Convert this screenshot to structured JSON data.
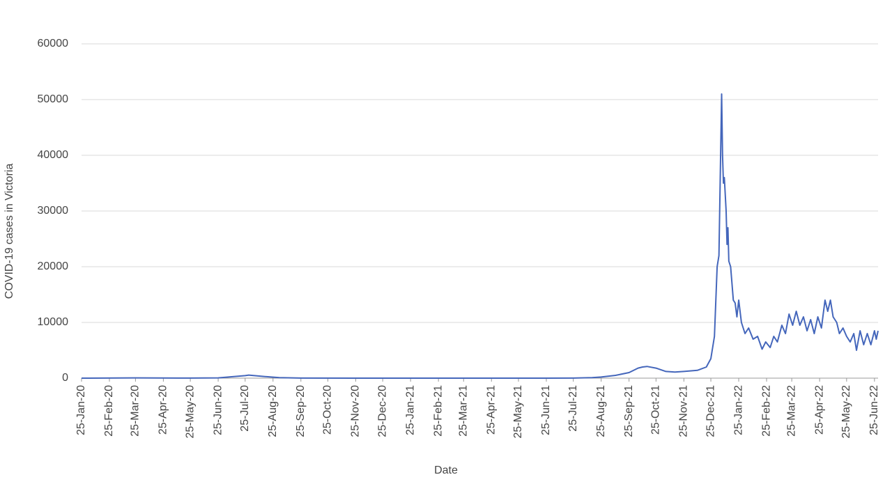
{
  "chart_data": {
    "type": "line",
    "x_label": "Date",
    "y_label": "COVID-19 cases in Victoria",
    "color": "#4466bb",
    "grid": true,
    "x": [
      "2020-01-25",
      "2020-03-25",
      "2020-05-25",
      "2020-06-25",
      "2020-07-10",
      "2020-07-25",
      "2020-07-29",
      "2020-08-15",
      "2020-09-01",
      "2020-09-25",
      "2020-11-25",
      "2021-01-25",
      "2021-06-25",
      "2021-07-25",
      "2021-08-15",
      "2021-08-25",
      "2021-09-10",
      "2021-09-25",
      "2021-10-05",
      "2021-10-10",
      "2021-10-15",
      "2021-10-25",
      "2021-11-05",
      "2021-11-15",
      "2021-11-25",
      "2021-12-10",
      "2021-12-20",
      "2021-12-25",
      "2021-12-29",
      "2022-01-01",
      "2022-01-03",
      "2022-01-06",
      "2022-01-07",
      "2022-01-08",
      "2022-01-09",
      "2022-01-11",
      "2022-01-12",
      "2022-01-13",
      "2022-01-14",
      "2022-01-16",
      "2022-01-19",
      "2022-01-21",
      "2022-01-23",
      "2022-01-25",
      "2022-01-28",
      "2022-02-01",
      "2022-02-05",
      "2022-02-10",
      "2022-02-15",
      "2022-02-20",
      "2022-02-24",
      "2022-03-01",
      "2022-03-05",
      "2022-03-09",
      "2022-03-14",
      "2022-03-18",
      "2022-03-22",
      "2022-03-26",
      "2022-03-30",
      "2022-04-03",
      "2022-04-07",
      "2022-04-11",
      "2022-04-15",
      "2022-04-19",
      "2022-04-23",
      "2022-04-27",
      "2022-05-01",
      "2022-05-04",
      "2022-05-07",
      "2022-05-10",
      "2022-05-14",
      "2022-05-17",
      "2022-05-21",
      "2022-05-25",
      "2022-05-29",
      "2022-06-02",
      "2022-06-05",
      "2022-06-09",
      "2022-06-13",
      "2022-06-17",
      "2022-06-21",
      "2022-06-25",
      "2022-06-27",
      "2022-06-29"
    ],
    "values": [
      0,
      50,
      10,
      50,
      250,
      450,
      550,
      300,
      100,
      20,
      0,
      0,
      0,
      20,
      100,
      200,
      500,
      1000,
      1800,
      2000,
      2100,
      1800,
      1200,
      1100,
      1200,
      1400,
      2000,
      3500,
      7500,
      20000,
      22000,
      51000,
      40000,
      35000,
      36000,
      30000,
      24000,
      27000,
      21000,
      20000,
      14000,
      13500,
      11000,
      14000,
      10000,
      8000,
      9000,
      7000,
      7500,
      5200,
      6500,
      5500,
      7500,
      6500,
      9500,
      8000,
      11500,
      9500,
      12000,
      9500,
      11000,
      8500,
      10500,
      8000,
      11000,
      9000,
      14000,
      12000,
      14000,
      11000,
      10000,
      8000,
      9000,
      7500,
      6500,
      8000,
      5000,
      8500,
      6000,
      8000,
      6000,
      8500,
      7000,
      8500
    ],
    "xlim": [
      "2020-01-25",
      "2022-06-29"
    ],
    "xticks": [
      {
        "value": "2020-01-25",
        "label": "25-Jan-20"
      },
      {
        "value": "2020-02-25",
        "label": "25-Feb-20"
      },
      {
        "value": "2020-03-25",
        "label": "25-Mar-20"
      },
      {
        "value": "2020-04-25",
        "label": "25-Apr-20"
      },
      {
        "value": "2020-05-25",
        "label": "25-May-20"
      },
      {
        "value": "2020-06-25",
        "label": "25-Jun-20"
      },
      {
        "value": "2020-07-25",
        "label": "25-Jul-20"
      },
      {
        "value": "2020-08-25",
        "label": "25-Aug-20"
      },
      {
        "value": "2020-09-25",
        "label": "25-Sep-20"
      },
      {
        "value": "2020-10-25",
        "label": "25-Oct-20"
      },
      {
        "value": "2020-11-25",
        "label": "25-Nov-20"
      },
      {
        "value": "2020-12-25",
        "label": "25-Dec-20"
      },
      {
        "value": "2021-01-25",
        "label": "25-Jan-21"
      },
      {
        "value": "2021-02-25",
        "label": "25-Feb-21"
      },
      {
        "value": "2021-03-25",
        "label": "25-Mar-21"
      },
      {
        "value": "2021-04-25",
        "label": "25-Apr-21"
      },
      {
        "value": "2021-05-25",
        "label": "25-May-21"
      },
      {
        "value": "2021-06-25",
        "label": "25-Jun-21"
      },
      {
        "value": "2021-07-25",
        "label": "25-Jul-21"
      },
      {
        "value": "2021-08-25",
        "label": "25-Aug-21"
      },
      {
        "value": "2021-09-25",
        "label": "25-Sep-21"
      },
      {
        "value": "2021-10-25",
        "label": "25-Oct-21"
      },
      {
        "value": "2021-11-25",
        "label": "25-Nov-21"
      },
      {
        "value": "2021-12-25",
        "label": "25-Dec-21"
      },
      {
        "value": "2022-01-25",
        "label": "25-Jan-22"
      },
      {
        "value": "2022-02-25",
        "label": "25-Feb-22"
      },
      {
        "value": "2022-03-25",
        "label": "25-Mar-22"
      },
      {
        "value": "2022-04-25",
        "label": "25-Apr-22"
      },
      {
        "value": "2022-05-25",
        "label": "25-May-22"
      },
      {
        "value": "2022-06-25",
        "label": "25-Jun-22"
      }
    ],
    "ylim": [
      0,
      60000
    ],
    "yticks": [
      0,
      10000,
      20000,
      30000,
      40000,
      50000,
      60000
    ]
  }
}
